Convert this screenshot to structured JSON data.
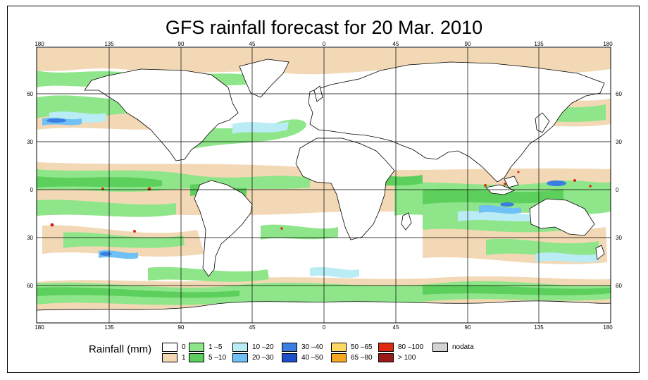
{
  "title": "GFS rainfall forecast for 20 Mar. 2010",
  "axes": {
    "longitude_ticks": [
      "180",
      "135",
      "90",
      "45",
      "0",
      "45",
      "90",
      "135",
      "180"
    ],
    "latitude_ticks": [
      "60",
      "30",
      "0",
      "30",
      "60"
    ]
  },
  "legend": {
    "title": "Rainfall (mm)",
    "items": [
      {
        "label": "0",
        "color": "#ffffff"
      },
      {
        "label": "1",
        "color": "#f2d8b4"
      },
      {
        "label": "1 –5",
        "color": "#8fe68a"
      },
      {
        "label": "5 –10",
        "color": "#5ccf5c"
      },
      {
        "label": "10 –20",
        "color": "#b9ecf5"
      },
      {
        "label": "20 –30",
        "color": "#6fc0f5"
      },
      {
        "label": "30 –40",
        "color": "#3a7fe0"
      },
      {
        "label": "40 –50",
        "color": "#1e4fc8"
      },
      {
        "label": "50 –65",
        "color": "#ffd966"
      },
      {
        "label": "65 –80",
        "color": "#f5a623"
      },
      {
        "label": "80 –100",
        "color": "#e02a10"
      },
      {
        "label": "> 100",
        "color": "#9a1a1a"
      },
      {
        "label": "nodata",
        "color": "#d4d4d4"
      }
    ]
  }
}
